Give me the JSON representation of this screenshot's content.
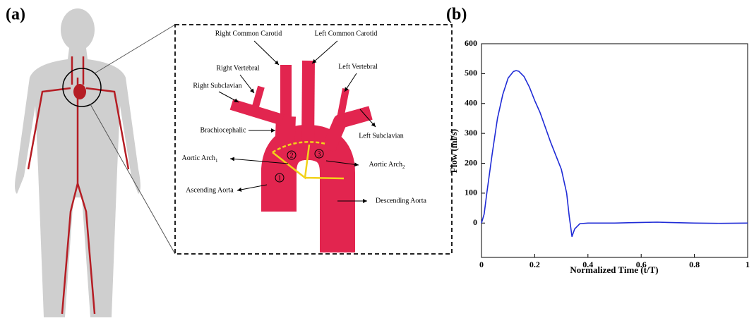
{
  "panels": {
    "a": "(a)",
    "b": "(b)"
  },
  "labels": [
    "Right Common Carotid",
    "Left Common Carotid",
    "Right Vertebral",
    "Left Vertebral",
    "Right Subclavian",
    "Brachiocephalic",
    "Left Subclavian",
    "Ascending Aorta",
    "Descending Aorta"
  ],
  "arch_labels": [
    {
      "text": "Aortic Arch",
      "sub": "1"
    },
    {
      "text": "Aortic Arch",
      "sub": "2"
    }
  ],
  "regions": [
    "1",
    "2",
    "3"
  ],
  "chart_data": {
    "type": "line",
    "xlabel": "Normalized Time (t/T)",
    "ylabel": "Flow (ml/s)",
    "x": [
      0,
      0.01,
      0.02,
      0.04,
      0.06,
      0.08,
      0.1,
      0.12,
      0.13,
      0.14,
      0.16,
      0.18,
      0.2,
      0.22,
      0.24,
      0.26,
      0.28,
      0.3,
      0.32,
      0.33,
      0.34,
      0.35,
      0.37,
      0.4,
      0.5,
      0.6,
      0.66,
      0.7,
      0.8,
      0.9,
      1
    ],
    "series": [
      {
        "color": "#1f2bd6",
        "values": [
          0,
          30,
          100,
          230,
          350,
          430,
          485,
          507,
          510,
          508,
          490,
          455,
          410,
          370,
          320,
          270,
          225,
          180,
          100,
          20,
          -45,
          -20,
          -2,
          0,
          0,
          2,
          3,
          2,
          0,
          -1,
          0
        ]
      }
    ],
    "xlim": [
      0,
      1
    ],
    "ylim": [
      -115,
      600
    ],
    "xticks": [
      0,
      0.2,
      0.4,
      0.6,
      0.8,
      1
    ],
    "yticks": [
      0,
      100,
      200,
      300,
      400,
      500,
      600
    ]
  }
}
